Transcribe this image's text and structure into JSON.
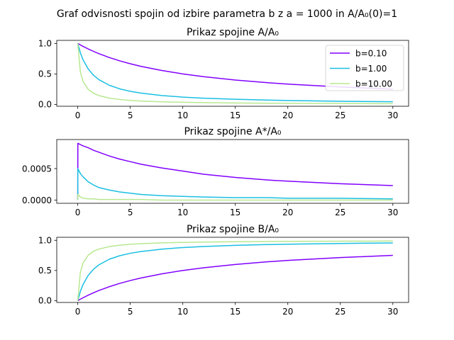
{
  "figure": {
    "suptitle": "Graf odvisnosti spojin od izbire parametra b z a = 1000 in A/A₀(0)=1"
  },
  "series_meta": [
    {
      "name": "b=0.10",
      "color": "#8000ff"
    },
    {
      "name": "b=1.00",
      "color": "#1bbfe2"
    },
    {
      "name": "b=10.00",
      "color": "#b8e890"
    }
  ],
  "chart_data": [
    {
      "type": "line",
      "title": "Prikaz spojine A/A₀",
      "xlabel": "",
      "ylabel": "",
      "xlim": [
        -2,
        31.5
      ],
      "ylim": [
        -0.03,
        1.05
      ],
      "xticks": [
        0,
        5,
        10,
        15,
        20,
        25,
        30
      ],
      "xtick_labels": [
        "0",
        "5",
        "10",
        "15",
        "20",
        "25",
        "30"
      ],
      "yticks": [
        0.0,
        0.5,
        1.0
      ],
      "ytick_labels": [
        "0.0",
        "0.5",
        "1.0"
      ],
      "grid": false,
      "legend": "top-right",
      "x": [
        0,
        0.25,
        0.5,
        1,
        1.5,
        2,
        3,
        4,
        5,
        6,
        8,
        10,
        12,
        15,
        18,
        20,
        25,
        30
      ],
      "series": [
        {
          "name": "b=0.10",
          "values": [
            1.0,
            0.976,
            0.952,
            0.909,
            0.87,
            0.833,
            0.769,
            0.714,
            0.667,
            0.625,
            0.556,
            0.5,
            0.455,
            0.4,
            0.357,
            0.333,
            0.286,
            0.25
          ]
        },
        {
          "name": "b=1.00",
          "values": [
            1.0,
            0.846,
            0.734,
            0.58,
            0.479,
            0.408,
            0.314,
            0.255,
            0.215,
            0.186,
            0.146,
            0.12,
            0.102,
            0.084,
            0.071,
            0.064,
            0.052,
            0.044
          ]
        },
        {
          "name": "b=10.00",
          "values": [
            1.0,
            0.53,
            0.378,
            0.245,
            0.183,
            0.146,
            0.104,
            0.081,
            0.066,
            0.056,
            0.043,
            0.035,
            0.03,
            0.024,
            0.02,
            0.018,
            0.015,
            0.012
          ]
        }
      ]
    },
    {
      "type": "line",
      "title": "Prikaz spojine A*/A₀",
      "xlabel": "",
      "ylabel": "",
      "xlim": [
        -2,
        31.5
      ],
      "ylim": [
        -5e-05,
        0.00096
      ],
      "xticks": [
        0,
        5,
        10,
        15,
        20,
        25,
        30
      ],
      "xtick_labels": [
        "0",
        "5",
        "10",
        "15",
        "20",
        "25",
        "30"
      ],
      "yticks": [
        0.0,
        0.0005
      ],
      "ytick_labels": [
        "0.0000",
        "0.0005"
      ],
      "grid": false,
      "x": [
        0,
        0.01,
        0.25,
        0.5,
        1,
        1.5,
        2,
        3,
        4,
        5,
        6,
        8,
        10,
        12,
        15,
        18,
        20,
        25,
        30
      ],
      "series": [
        {
          "name": "b=0.10",
          "values": [
            0.0,
            0.0009,
            0.00088,
            0.00086,
            0.00083,
            0.00079,
            0.00076,
            0.0007,
            0.00065,
            0.00061,
            0.00057,
            0.00051,
            0.00046,
            0.00041,
            0.00036,
            0.00032,
            0.0003,
            0.00026,
            0.00023
          ]
        },
        {
          "name": "b=1.00",
          "values": [
            0.0,
            0.0005,
            0.00042,
            0.00037,
            0.00029,
            0.00024,
            0.0002,
            0.00016,
            0.00013,
            0.00011,
            9e-05,
            7e-05,
            6e-05,
            5e-05,
            4e-05,
            4e-05,
            3e-05,
            3e-05,
            2e-05
          ]
        },
        {
          "name": "b=10.00",
          "values": [
            0.0,
            9e-05,
            5e-05,
            3e-05,
            2e-05,
            2e-05,
            1e-05,
            1e-05,
            1e-05,
            1e-05,
            1e-05,
            0.0,
            0.0,
            0.0,
            0.0,
            0.0,
            0.0,
            0.0,
            0.0
          ]
        }
      ]
    },
    {
      "type": "line",
      "title": "Prikaz spojine B/A₀",
      "xlabel": "",
      "ylabel": "",
      "xlim": [
        -2,
        31.5
      ],
      "ylim": [
        -0.03,
        1.05
      ],
      "xticks": [
        0,
        5,
        10,
        15,
        20,
        25,
        30
      ],
      "xtick_labels": [
        "0",
        "5",
        "10",
        "15",
        "20",
        "25",
        "30"
      ],
      "yticks": [
        0.0,
        0.5,
        1.0
      ],
      "ytick_labels": [
        "0.0",
        "0.5",
        "1.0"
      ],
      "grid": false,
      "x": [
        0,
        0.25,
        0.5,
        1,
        1.5,
        2,
        3,
        4,
        5,
        6,
        8,
        10,
        12,
        15,
        18,
        20,
        25,
        30
      ],
      "series": [
        {
          "name": "b=0.10",
          "values": [
            0.0,
            0.024,
            0.048,
            0.091,
            0.13,
            0.167,
            0.231,
            0.286,
            0.333,
            0.375,
            0.444,
            0.5,
            0.545,
            0.6,
            0.643,
            0.667,
            0.714,
            0.75
          ]
        },
        {
          "name": "b=1.00",
          "values": [
            0.0,
            0.154,
            0.266,
            0.42,
            0.521,
            0.592,
            0.686,
            0.745,
            0.785,
            0.814,
            0.854,
            0.88,
            0.898,
            0.916,
            0.929,
            0.936,
            0.948,
            0.956
          ]
        },
        {
          "name": "b=10.00",
          "values": [
            0.0,
            0.47,
            0.622,
            0.755,
            0.817,
            0.854,
            0.896,
            0.919,
            0.934,
            0.944,
            0.957,
            0.965,
            0.97,
            0.976,
            0.98,
            0.982,
            0.985,
            0.988
          ]
        }
      ]
    }
  ]
}
